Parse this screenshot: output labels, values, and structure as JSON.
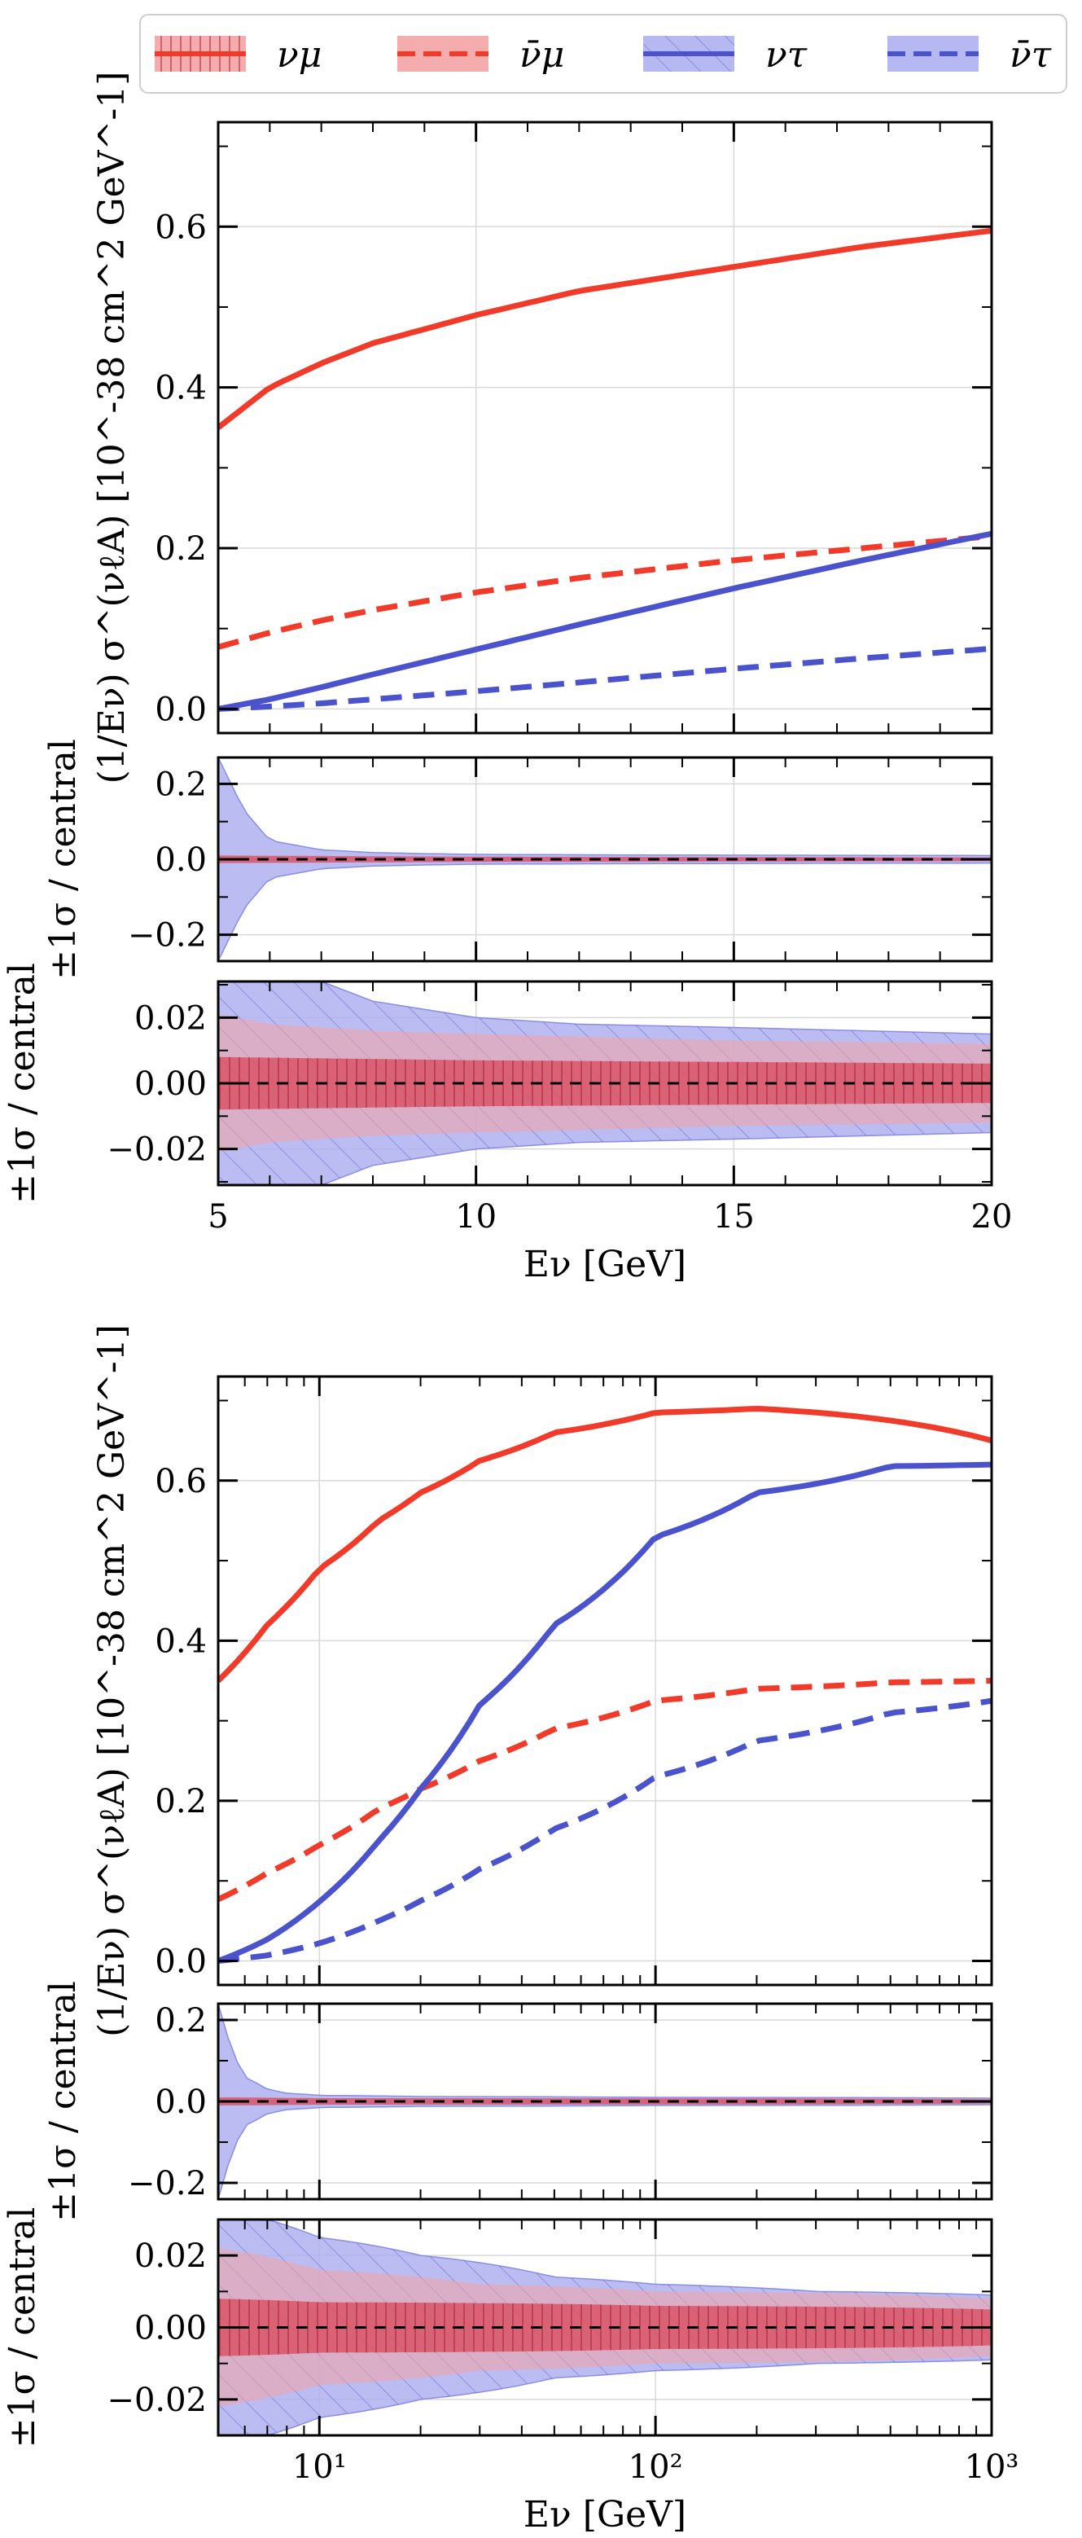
{
  "colors": {
    "red": "#f03a2a",
    "red_band": "#d9485a",
    "red_band_light": "#f4a3a3",
    "blue": "#4a52cc",
    "blue_band": "#aeb0f0",
    "grid": "#d8d8d8"
  },
  "legend": {
    "placement": "top",
    "entries": [
      {
        "label": "νμ",
        "color": "red",
        "style": "solid",
        "hatch": "vertical"
      },
      {
        "label": "ν̄μ",
        "color": "red",
        "style": "dashed",
        "hatch": "none"
      },
      {
        "label": "ντ",
        "color": "blue",
        "style": "solid",
        "hatch": "diagonal"
      },
      {
        "label": "ν̄τ",
        "color": "blue",
        "style": "dashed",
        "hatch": "none"
      }
    ]
  },
  "chart_data": [
    {
      "type": "line",
      "panel": "top-linear",
      "xscale": "linear",
      "xlim": [
        5,
        20
      ],
      "xlabel": "Eν [GeV]",
      "x_ticks": [
        5,
        10,
        15,
        20
      ],
      "x_tick_labels": [
        "5",
        "10",
        "15",
        "20"
      ],
      "main": {
        "ylabel": "(1/Eν) σ^(νℓA) [10^-38 cm^2 GeV^-1]",
        "ylim": [
          -0.03,
          0.73
        ],
        "y_ticks": [
          0.0,
          0.2,
          0.4,
          0.6
        ],
        "y_tick_labels": [
          "0.0",
          "0.2",
          "0.4",
          "0.6"
        ],
        "series": [
          {
            "name": "νμ",
            "style": "solid",
            "color": "red",
            "x": [
              5,
              6,
              7,
              8,
              10,
              12,
              15,
              17.5,
              20
            ],
            "values": [
              0.35,
              0.4,
              0.43,
              0.455,
              0.49,
              0.52,
              0.55,
              0.575,
              0.595
            ]
          },
          {
            "name": "ν̄μ",
            "style": "dashed",
            "color": "red",
            "x": [
              5,
              6,
              7,
              8,
              10,
              12,
              15,
              17.5,
              20
            ],
            "values": [
              0.077,
              0.095,
              0.11,
              0.123,
              0.145,
              0.163,
              0.185,
              0.2,
              0.215
            ]
          },
          {
            "name": "ντ",
            "style": "solid",
            "color": "blue",
            "x": [
              5,
              6,
              7,
              8,
              10,
              12,
              15,
              17.5,
              20
            ],
            "values": [
              0.0,
              0.012,
              0.027,
              0.043,
              0.074,
              0.105,
              0.15,
              0.185,
              0.218
            ]
          },
          {
            "name": "ν̄τ",
            "style": "dashed",
            "color": "blue",
            "x": [
              5,
              6,
              7,
              8,
              10,
              12,
              15,
              17.5,
              20
            ],
            "values": [
              0.0,
              0.003,
              0.007,
              0.012,
              0.022,
              0.033,
              0.05,
              0.063,
              0.075
            ]
          }
        ]
      },
      "ratio_wide": {
        "ylabel": "±1σ / central",
        "ylim": [
          -0.27,
          0.27
        ],
        "y_ticks": [
          -0.2,
          0.0,
          0.2
        ],
        "y_tick_labels": [
          "−0.2",
          "0.0",
          "0.2"
        ],
        "bands": [
          {
            "name": "ντ band",
            "color": "blue_band",
            "x": [
              5,
              5.5,
              6,
              7,
              8,
              9,
              10,
              12,
              15,
              20
            ],
            "upper": [
              0.27,
              0.13,
              0.05,
              0.025,
              0.018,
              0.015,
              0.013,
              0.012,
              0.011,
              0.01
            ]
          },
          {
            "name": "νμ band",
            "color": "red_band",
            "x": [
              5,
              10,
              20
            ],
            "upper": [
              0.01,
              0.007,
              0.005
            ]
          }
        ]
      },
      "ratio_narrow": {
        "ylabel": "±1σ / central",
        "ylim": [
          -0.031,
          0.031
        ],
        "y_ticks": [
          -0.02,
          0.0,
          0.02
        ],
        "y_tick_labels": [
          "−0.02",
          "0.00",
          "0.02"
        ],
        "bands": [
          {
            "name": "ντ band",
            "color": "blue_band",
            "x": [
              5,
              6,
              7,
              8,
              10,
              12,
              15,
              20
            ],
            "upper": [
              0.031,
              0.031,
              0.031,
              0.025,
              0.02,
              0.018,
              0.017,
              0.015
            ]
          },
          {
            "name": "ν̄μ band",
            "color": "red_band_light",
            "x": [
              5,
              6,
              8,
              10,
              15,
              20
            ],
            "upper": [
              0.021,
              0.018,
              0.016,
              0.015,
              0.013,
              0.012
            ]
          },
          {
            "name": "νμ band",
            "color": "red_band",
            "x": [
              5,
              10,
              20
            ],
            "upper": [
              0.008,
              0.007,
              0.006
            ]
          }
        ]
      }
    },
    {
      "type": "line",
      "panel": "bottom-log",
      "xscale": "log",
      "xlim": [
        5,
        1000
      ],
      "xlabel": "Eν [GeV]",
      "x_ticks": [
        10,
        100,
        1000
      ],
      "x_tick_labels": [
        "10¹",
        "10²",
        "10³"
      ],
      "main": {
        "ylabel": "(1/Eν) σ^(νℓA) [10^-38 cm^2 GeV^-1]",
        "ylim": [
          -0.03,
          0.73
        ],
        "y_ticks": [
          0.0,
          0.2,
          0.4,
          0.6
        ],
        "y_tick_labels": [
          "0.0",
          "0.2",
          "0.4",
          "0.6"
        ],
        "series": [
          {
            "name": "νμ",
            "style": "solid",
            "color": "red",
            "x": [
              5,
              7,
              10,
              15,
              20,
              30,
              50,
              100,
              200,
              500,
              1000
            ],
            "values": [
              0.35,
              0.42,
              0.49,
              0.55,
              0.585,
              0.625,
              0.66,
              0.685,
              0.69,
              0.675,
              0.65
            ]
          },
          {
            "name": "ν̄μ",
            "style": "dashed",
            "color": "red",
            "x": [
              5,
              7,
              10,
              15,
              20,
              30,
              50,
              100,
              200,
              500,
              1000
            ],
            "values": [
              0.077,
              0.11,
              0.145,
              0.19,
              0.215,
              0.25,
              0.29,
              0.325,
              0.34,
              0.348,
              0.35
            ]
          },
          {
            "name": "ντ",
            "style": "solid",
            "color": "blue",
            "x": [
              5,
              7,
              10,
              15,
              20,
              30,
              50,
              100,
              200,
              500,
              1000
            ],
            "values": [
              0.0,
              0.027,
              0.074,
              0.15,
              0.215,
              0.32,
              0.42,
              0.53,
              0.585,
              0.618,
              0.62
            ]
          },
          {
            "name": "ν̄τ",
            "style": "dashed",
            "color": "blue",
            "x": [
              5,
              7,
              10,
              15,
              20,
              30,
              50,
              100,
              200,
              500,
              1000
            ],
            "values": [
              0.0,
              0.007,
              0.022,
              0.05,
              0.075,
              0.115,
              0.165,
              0.23,
              0.275,
              0.31,
              0.325
            ]
          }
        ]
      },
      "ratio_wide": {
        "ylabel": "±1σ / central",
        "ylim": [
          -0.24,
          0.24
        ],
        "y_ticks": [
          -0.2,
          0.0,
          0.2
        ],
        "y_tick_labels": [
          "−0.2",
          "0.0",
          "0.2"
        ],
        "bands": [
          {
            "name": "ντ band",
            "color": "blue_band",
            "x": [
              5,
              5.5,
              6,
              7,
              8,
              10,
              20,
              100,
              1000
            ],
            "upper": [
              0.24,
              0.12,
              0.06,
              0.03,
              0.02,
              0.015,
              0.012,
              0.01,
              0.008
            ]
          },
          {
            "name": "νμ band",
            "color": "red_band",
            "x": [
              5,
              10,
              1000
            ],
            "upper": [
              0.01,
              0.008,
              0.005
            ]
          }
        ]
      },
      "ratio_narrow": {
        "ylabel": "±1σ / central",
        "ylim": [
          -0.03,
          0.03
        ],
        "y_ticks": [
          -0.02,
          0.0,
          0.02
        ],
        "y_tick_labels": [
          "−0.02",
          "0.00",
          "0.02"
        ],
        "bands": [
          {
            "name": "ντ band",
            "color": "blue_band",
            "x": [
              5,
              7,
              10,
              20,
              50,
              100,
              300,
              1000
            ],
            "upper": [
              0.03,
              0.03,
              0.025,
              0.02,
              0.014,
              0.012,
              0.01,
              0.009
            ]
          },
          {
            "name": "ν̄μ band",
            "color": "red_band_light",
            "x": [
              5,
              10,
              30,
              100,
              1000
            ],
            "upper": [
              0.022,
              0.016,
              0.012,
              0.01,
              0.008
            ]
          },
          {
            "name": "νμ band",
            "color": "red_band",
            "x": [
              5,
              10,
              100,
              1000
            ],
            "upper": [
              0.008,
              0.007,
              0.006,
              0.005
            ]
          }
        ]
      }
    }
  ]
}
